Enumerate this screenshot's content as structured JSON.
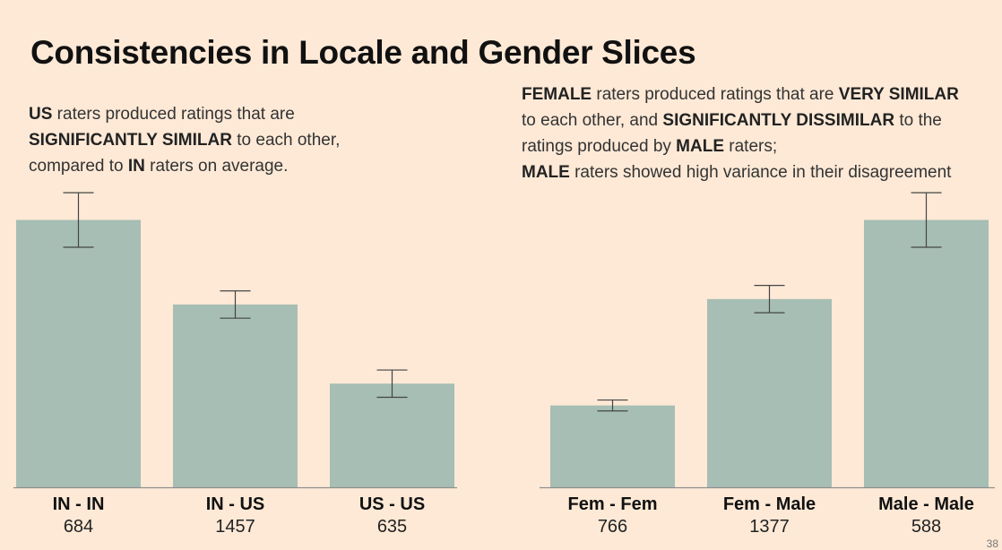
{
  "title": "Consistencies in Locale and Gender Slices",
  "captions": {
    "left": [
      [
        {
          "b": true,
          "t": "US"
        },
        {
          "b": false,
          "t": " raters produced ratings that are"
        }
      ],
      [
        {
          "b": true,
          "t": "SIGNIFICANTLY SIMILAR"
        },
        {
          "b": false,
          "t": " to each other,"
        }
      ],
      [
        {
          "b": false,
          "t": "compared to "
        },
        {
          "b": true,
          "t": "IN"
        },
        {
          "b": false,
          "t": " raters on average."
        }
      ]
    ],
    "right": [
      [
        {
          "b": true,
          "t": "FEMALE"
        },
        {
          "b": false,
          "t": " raters produced ratings that are "
        },
        {
          "b": true,
          "t": "VERY SIMILAR"
        }
      ],
      [
        {
          "b": false,
          "t": "to each other, and "
        },
        {
          "b": true,
          "t": "SIGNIFICANTLY DISSIMILAR"
        },
        {
          "b": false,
          "t": " to the"
        }
      ],
      [
        {
          "b": false,
          "t": "ratings produced by "
        },
        {
          "b": true,
          "t": "MALE"
        },
        {
          "b": false,
          "t": " raters;"
        }
      ],
      [
        {
          "b": true,
          "t": "MALE"
        },
        {
          "b": false,
          "t": " raters showed high variance in their disagreement"
        }
      ]
    ]
  },
  "slide_number": "38",
  "colors": {
    "bar": "#a6beb3",
    "axis": "#8f8f8f",
    "errorbar": "#444444",
    "background": "#fde9d6"
  },
  "chart_data": [
    {
      "type": "bar",
      "title": "",
      "categories": [
        "IN - IN",
        "IN - US",
        "US - US"
      ],
      "counts": [
        "684",
        "1457",
        "635"
      ],
      "values": [
        0.98,
        0.67,
        0.38
      ],
      "error": [
        0.1,
        0.05,
        0.05
      ],
      "ylim": [
        0,
        1.1
      ]
    },
    {
      "type": "bar",
      "title": "",
      "categories": [
        "Fem - Fem",
        "Fem - Male",
        "Male - Male"
      ],
      "counts": [
        "766",
        "1377",
        "588"
      ],
      "values": [
        0.3,
        0.69,
        0.98
      ],
      "error": [
        0.02,
        0.05,
        0.1
      ],
      "ylim": [
        0,
        1.1
      ]
    }
  ]
}
